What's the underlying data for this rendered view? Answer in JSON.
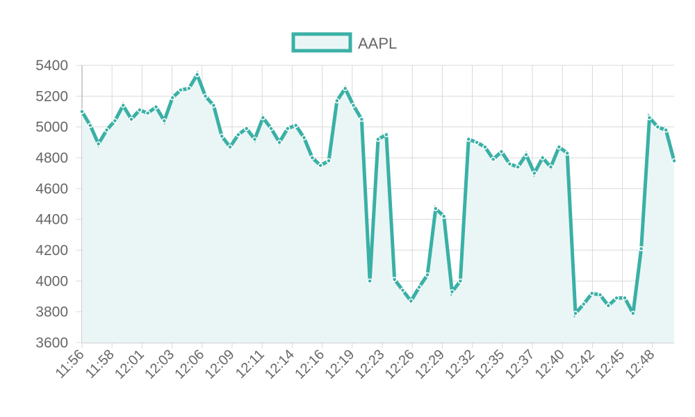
{
  "chart_data": {
    "type": "line",
    "legend": {
      "label": "AAPL",
      "position": "top"
    },
    "colors": {
      "line": "#3ab0a6",
      "fill": "#eaf6f5",
      "point_border": "#ffffff",
      "grid": "#d9d9d9",
      "axis": "#bdbdbd",
      "tick_text": "#666666"
    },
    "y_ticks": [
      "3600",
      "3800",
      "4000",
      "4200",
      "4400",
      "4600",
      "4800",
      "5000",
      "5200",
      "5400"
    ],
    "ylim": [
      3600,
      5400
    ],
    "x_ticks": [
      "11:56",
      "11:58",
      "12:01",
      "12:03",
      "12:06",
      "12:09",
      "12:11",
      "12:14",
      "12:16",
      "12:19",
      "12:23",
      "12:26",
      "12:29",
      "12:32",
      "12:35",
      "12:37",
      "12:40",
      "12:42",
      "12:45",
      "12:48"
    ],
    "grid": true,
    "series": [
      {
        "name": "AAPL",
        "values": [
          5100,
          5010,
          4890,
          4980,
          5040,
          5140,
          5050,
          5110,
          5090,
          5130,
          5040,
          5190,
          5240,
          5250,
          5340,
          5200,
          5140,
          4940,
          4870,
          4950,
          4990,
          4920,
          5060,
          4990,
          4900,
          4990,
          5010,
          4930,
          4800,
          4750,
          4780,
          5170,
          5250,
          5140,
          5050,
          4000,
          4920,
          4950,
          4010,
          3940,
          3870,
          3960,
          4040,
          4470,
          4420,
          3930,
          4000,
          4920,
          4900,
          4870,
          4790,
          4840,
          4760,
          4740,
          4820,
          4700,
          4800,
          4740,
          4870,
          4830,
          3790,
          3850,
          3920,
          3910,
          3840,
          3890,
          3890,
          3790,
          4210,
          5060,
          5000,
          4980,
          4780
        ]
      }
    ]
  }
}
